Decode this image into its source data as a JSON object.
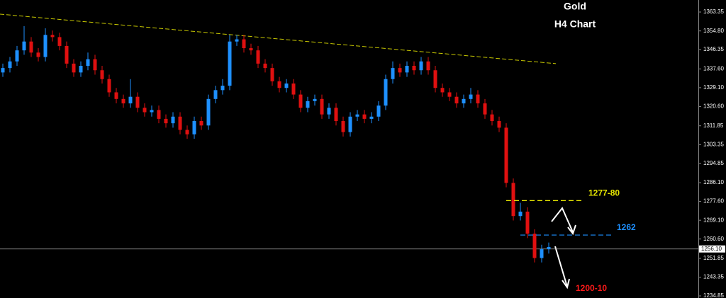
{
  "chart_data": {
    "type": "candlestick",
    "title": "Gold",
    "subtitle": "H4 Chart",
    "up_color": "#1e90ff",
    "down_color": "#e01010",
    "open": [
      1336,
      1338,
      1341,
      1346,
      1350,
      1345,
      1343,
      1353,
      1352,
      1348,
      1340,
      1336,
      1339,
      1342,
      1337,
      1333,
      1327,
      1324,
      1322,
      1325,
      1320,
      1318,
      1319,
      1315,
      1313,
      1316,
      1310,
      1308,
      1314,
      1312,
      1324,
      1328,
      1330,
      1350,
      1351,
      1347,
      1346,
      1340,
      1338,
      1332,
      1329,
      1331,
      1326,
      1320,
      1323,
      1324,
      1317,
      1320,
      1314,
      1309,
      1316,
      1317,
      1315,
      1316,
      1321,
      1333,
      1338,
      1336,
      1339,
      1337,
      1341,
      1337,
      1329,
      1327,
      1325,
      1322,
      1324,
      1326,
      1322,
      1317,
      1314,
      1311,
      1286,
      1271,
      1273,
      1263,
      1252,
      1256
    ],
    "high": [
      1340,
      1343,
      1348,
      1357,
      1352,
      1347,
      1356,
      1355,
      1354,
      1350,
      1342,
      1341,
      1345,
      1344,
      1339,
      1335,
      1329,
      1326,
      1333,
      1327,
      1322,
      1321,
      1321,
      1317,
      1318,
      1318,
      1312,
      1316,
      1316,
      1326,
      1330,
      1333,
      1353,
      1353,
      1353,
      1349,
      1348,
      1342,
      1340,
      1334,
      1333,
      1333,
      1328,
      1325,
      1326,
      1326,
      1322,
      1322,
      1316,
      1318,
      1319,
      1319,
      1318,
      1323,
      1335,
      1341,
      1340,
      1341,
      1341,
      1343,
      1343,
      1339,
      1331,
      1329,
      1327,
      1326,
      1329,
      1328,
      1324,
      1319,
      1316,
      1313,
      1288,
      1277,
      1275,
      1265,
      1258,
      1259
    ],
    "low": [
      1334,
      1336,
      1339,
      1344,
      1343,
      1341,
      1341,
      1350,
      1346,
      1338,
      1334,
      1334,
      1337,
      1335,
      1331,
      1325,
      1322,
      1320,
      1320,
      1318,
      1316,
      1316,
      1313,
      1311,
      1311,
      1308,
      1306,
      1306,
      1310,
      1310,
      1322,
      1326,
      1328,
      1348,
      1345,
      1344,
      1338,
      1336,
      1330,
      1327,
      1327,
      1324,
      1318,
      1318,
      1321,
      1315,
      1315,
      1312,
      1307,
      1307,
      1314,
      1313,
      1313,
      1314,
      1319,
      1331,
      1334,
      1334,
      1335,
      1335,
      1335,
      1327,
      1325,
      1323,
      1320,
      1320,
      1322,
      1320,
      1315,
      1312,
      1309,
      1284,
      1269,
      1269,
      1261,
      1250,
      1250,
      1254
    ],
    "close": [
      1338,
      1341,
      1346,
      1350,
      1345,
      1343,
      1353,
      1352,
      1348,
      1340,
      1336,
      1339,
      1342,
      1337,
      1333,
      1327,
      1324,
      1322,
      1325,
      1320,
      1318,
      1319,
      1315,
      1313,
      1316,
      1310,
      1308,
      1314,
      1312,
      1324,
      1328,
      1330,
      1350,
      1351,
      1347,
      1346,
      1340,
      1338,
      1332,
      1329,
      1331,
      1326,
      1320,
      1323,
      1324,
      1317,
      1320,
      1314,
      1309,
      1316,
      1317,
      1315,
      1316,
      1321,
      1333,
      1338,
      1336,
      1339,
      1337,
      1341,
      1337,
      1329,
      1327,
      1325,
      1322,
      1324,
      1326,
      1322,
      1317,
      1314,
      1311,
      1286,
      1271,
      1273,
      1263,
      1252,
      1256,
      1257
    ],
    "ylim": [
      1233.9,
      1368.8
    ],
    "yticks": [
      1363.35,
      {
        "value": 1354.8,
        "label": "1354.80"
      },
      1346.35,
      {
        "value": 1337.6,
        "label": "1337.60"
      },
      {
        "value": 1329.1,
        "label": "1329.10"
      },
      {
        "value": 1320.6,
        "label": "1320.60"
      },
      1311.85,
      1303.35,
      1294.85,
      {
        "value": 1286.1,
        "label": "1286.10"
      },
      {
        "value": 1277.6,
        "label": "1277.60"
      },
      {
        "value": 1269.1,
        "label": "1269.10"
      },
      {
        "value": 1260.6,
        "label": "1260.60"
      },
      1251.85,
      1243.35,
      1234.85
    ],
    "current_price": {
      "value": 1256.1,
      "label": "1256.10"
    },
    "trendline": {
      "x": [
        0,
        78
      ],
      "y": [
        1362.4,
        1340
      ],
      "color": "#c8c800"
    },
    "levels": [
      {
        "label": "1277-80",
        "value": 1278,
        "x": [
          71,
          82
        ],
        "color": "#e6e600"
      },
      {
        "label": "1262",
        "value": 1262.4,
        "x": [
          73,
          86
        ],
        "color": "#1e90ff"
      }
    ],
    "target": {
      "label": "1200-10",
      "color": "#ff1a1a"
    }
  }
}
